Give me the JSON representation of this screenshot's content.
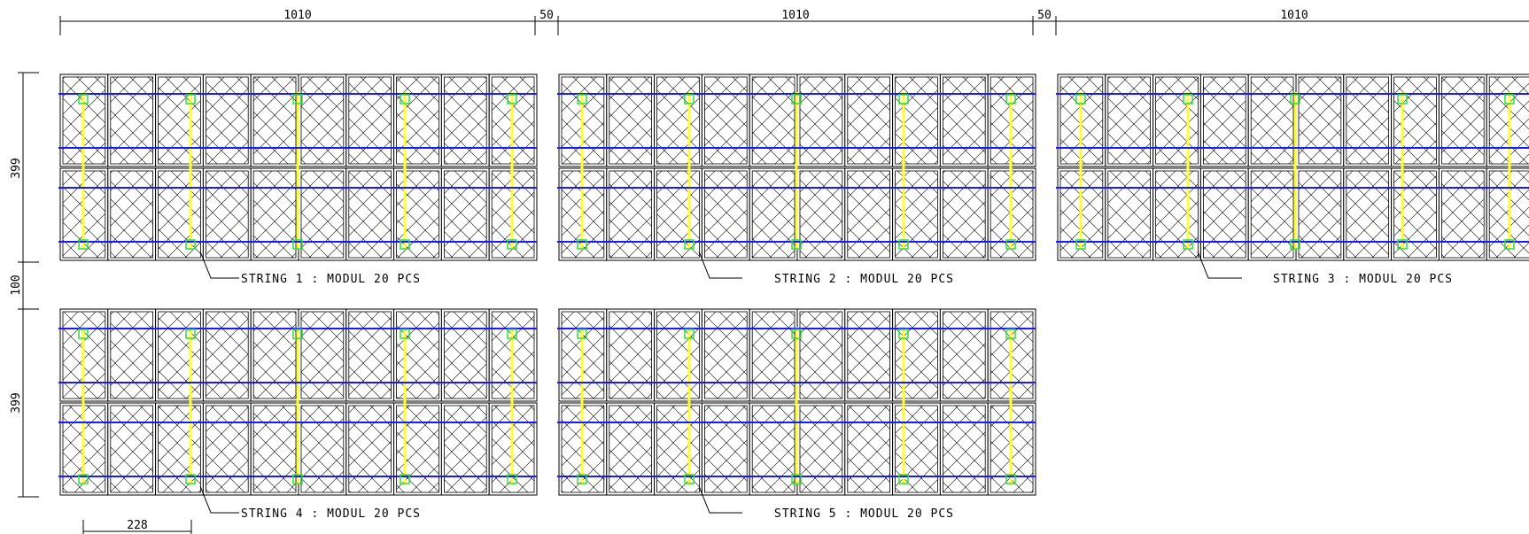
{
  "dimensions": {
    "top_widths": [
      "1010",
      "50",
      "1010",
      "50",
      "1010"
    ],
    "row1_height": "399",
    "row_gap": "100",
    "row2_height": "399",
    "bottom_width": "228"
  },
  "strings": [
    {
      "label": "STRING 1 : MODUL 20 PCS"
    },
    {
      "label": "STRING 2 : MODUL 20 PCS"
    },
    {
      "label": "STRING 3 : MODUL 20 PCS"
    },
    {
      "label": "STRING 4 : MODUL 20 PCS"
    },
    {
      "label": "STRING 5 : MODUL 20 PCS"
    }
  ],
  "colors": {
    "line": "#000000",
    "rail": "#1a1aff",
    "cable": "#ffff33",
    "clamp": "#33dd33"
  },
  "array": {
    "modules_per_row": 10,
    "rows_per_array": 2
  }
}
